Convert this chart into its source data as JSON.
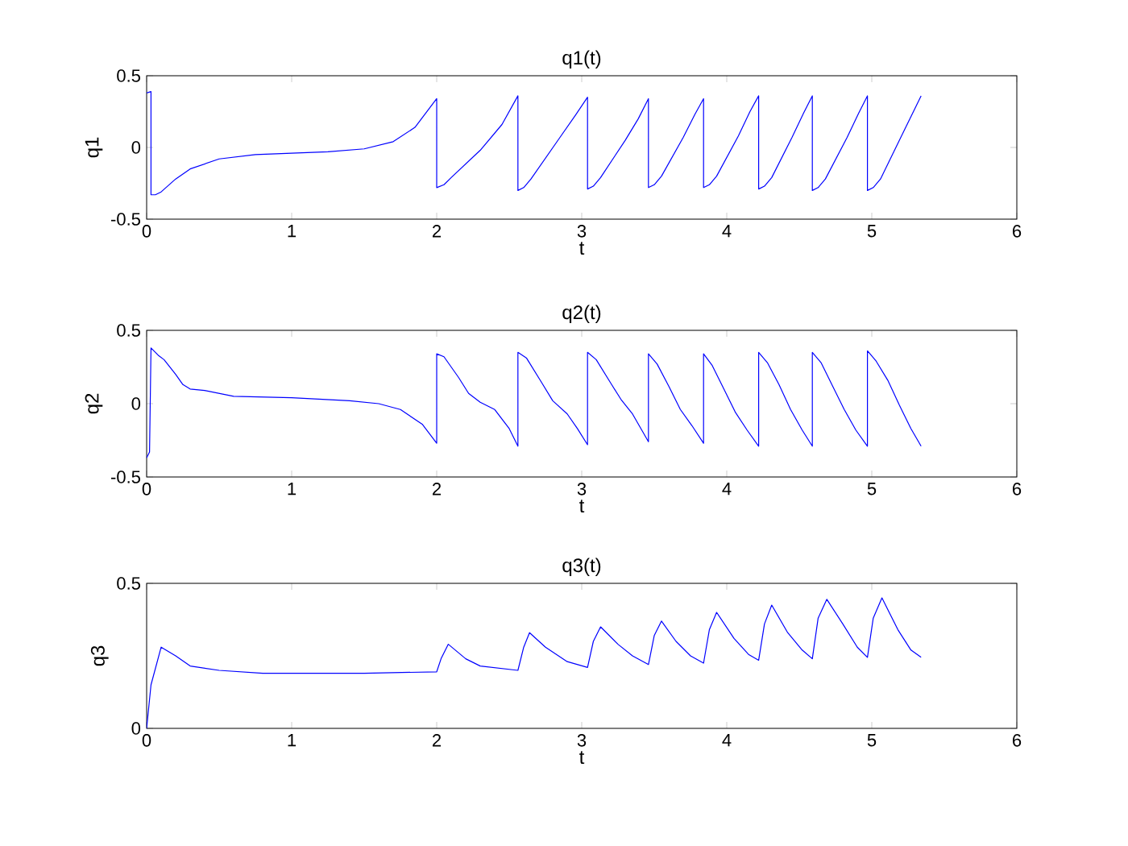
{
  "chart_data": [
    {
      "type": "line",
      "title": "q1(t)",
      "xlabel": "t",
      "ylabel": "q1",
      "color": "#0000ff",
      "xlim": [
        0,
        6
      ],
      "ylim": [
        -0.5,
        0.5
      ],
      "xticks": [
        0,
        1,
        2,
        3,
        4,
        5,
        6
      ],
      "yticks": [
        -0.5,
        0,
        0.5
      ],
      "x": [
        0,
        0.03,
        0.03,
        0.06,
        0.1,
        0.2,
        0.3,
        0.5,
        0.75,
        1,
        1.25,
        1.5,
        1.7,
        1.85,
        2.0,
        2.0,
        2.05,
        2.1,
        2.3,
        2.45,
        2.56,
        2.56,
        2.6,
        2.65,
        2.85,
        2.96,
        3.04,
        3.04,
        3.08,
        3.13,
        3.3,
        3.39,
        3.46,
        3.46,
        3.5,
        3.55,
        3.7,
        3.78,
        3.84,
        3.84,
        3.88,
        3.93,
        4.08,
        4.16,
        4.22,
        4.22,
        4.26,
        4.31,
        4.45,
        4.53,
        4.59,
        4.59,
        4.63,
        4.68,
        4.83,
        4.91,
        4.97,
        4.97,
        5.01,
        5.06,
        5.2,
        5.34
      ],
      "values": [
        0.38,
        0.39,
        -0.33,
        -0.33,
        -0.31,
        -0.22,
        -0.15,
        -0.08,
        -0.05,
        -0.04,
        -0.03,
        -0.01,
        0.04,
        0.14,
        0.34,
        -0.28,
        -0.26,
        -0.21,
        -0.02,
        0.16,
        0.36,
        -0.3,
        -0.28,
        -0.22,
        0.07,
        0.23,
        0.35,
        -0.29,
        -0.27,
        -0.21,
        0.05,
        0.2,
        0.34,
        -0.28,
        -0.26,
        -0.2,
        0.07,
        0.23,
        0.34,
        -0.28,
        -0.26,
        -0.2,
        0.08,
        0.25,
        0.36,
        -0.29,
        -0.27,
        -0.21,
        0.07,
        0.24,
        0.36,
        -0.3,
        -0.28,
        -0.22,
        0.07,
        0.24,
        0.36,
        -0.3,
        -0.28,
        -0.22,
        0.07,
        0.36
      ]
    },
    {
      "type": "line",
      "title": "q2(t)",
      "xlabel": "t",
      "ylabel": "q2",
      "color": "#0000ff",
      "xlim": [
        0,
        6
      ],
      "ylim": [
        -0.5,
        0.5
      ],
      "xticks": [
        0,
        1,
        2,
        3,
        4,
        5,
        6
      ],
      "yticks": [
        -0.5,
        0,
        0.5
      ],
      "x": [
        0,
        0.02,
        0.03,
        0.08,
        0.12,
        0.2,
        0.25,
        0.3,
        0.4,
        0.5,
        0.6,
        1,
        1.4,
        1.6,
        1.75,
        1.9,
        2.0,
        2.0,
        2.05,
        2.15,
        2.22,
        2.3,
        2.4,
        2.5,
        2.56,
        2.56,
        2.62,
        2.72,
        2.8,
        2.9,
        2.97,
        3.04,
        3.04,
        3.1,
        3.2,
        3.27,
        3.35,
        3.46,
        3.46,
        3.52,
        3.6,
        3.68,
        3.76,
        3.84,
        3.84,
        3.9,
        3.98,
        4.06,
        4.14,
        4.22,
        4.22,
        4.28,
        4.36,
        4.44,
        4.52,
        4.59,
        4.59,
        4.65,
        4.73,
        4.81,
        4.89,
        4.97,
        4.97,
        5.03,
        5.11,
        5.19,
        5.27,
        5.34
      ],
      "values": [
        -0.37,
        -0.33,
        0.38,
        0.33,
        0.3,
        0.2,
        0.13,
        0.1,
        0.09,
        0.07,
        0.05,
        0.04,
        0.02,
        0.0,
        -0.04,
        -0.14,
        -0.27,
        0.34,
        0.32,
        0.18,
        0.07,
        0.01,
        -0.04,
        -0.17,
        -0.29,
        0.35,
        0.31,
        0.15,
        0.02,
        -0.07,
        -0.17,
        -0.28,
        0.35,
        0.3,
        0.14,
        0.03,
        -0.07,
        -0.26,
        0.34,
        0.27,
        0.12,
        -0.04,
        -0.15,
        -0.27,
        0.34,
        0.26,
        0.1,
        -0.06,
        -0.18,
        -0.29,
        0.35,
        0.28,
        0.13,
        -0.04,
        -0.18,
        -0.29,
        0.35,
        0.28,
        0.12,
        -0.04,
        -0.18,
        -0.29,
        0.36,
        0.29,
        0.16,
        -0.01,
        -0.17,
        -0.29
      ]
    },
    {
      "type": "line",
      "title": "q3(t)",
      "xlabel": "t",
      "ylabel": "q3",
      "color": "#0000ff",
      "xlim": [
        0,
        6
      ],
      "ylim": [
        0,
        0.5
      ],
      "xticks": [
        0,
        1,
        2,
        3,
        4,
        5,
        6
      ],
      "yticks": [
        0,
        0.5
      ],
      "x": [
        0,
        0.03,
        0.1,
        0.2,
        0.3,
        0.5,
        0.8,
        1.5,
        2.0,
        2.03,
        2.08,
        2.2,
        2.3,
        2.56,
        2.6,
        2.64,
        2.75,
        2.9,
        3.04,
        3.08,
        3.13,
        3.25,
        3.35,
        3.46,
        3.5,
        3.55,
        3.65,
        3.75,
        3.84,
        3.88,
        3.93,
        4.05,
        4.15,
        4.22,
        4.26,
        4.31,
        4.42,
        4.52,
        4.59,
        4.63,
        4.69,
        4.8,
        4.9,
        4.97,
        5.01,
        5.07,
        5.18,
        5.27,
        5.34
      ],
      "values": [
        0,
        0.15,
        0.28,
        0.25,
        0.215,
        0.2,
        0.19,
        0.19,
        0.195,
        0.24,
        0.29,
        0.24,
        0.215,
        0.2,
        0.28,
        0.33,
        0.28,
        0.23,
        0.21,
        0.3,
        0.35,
        0.29,
        0.25,
        0.22,
        0.32,
        0.37,
        0.3,
        0.25,
        0.225,
        0.34,
        0.4,
        0.31,
        0.255,
        0.235,
        0.36,
        0.425,
        0.33,
        0.27,
        0.24,
        0.38,
        0.445,
        0.36,
        0.28,
        0.245,
        0.38,
        0.45,
        0.34,
        0.27,
        0.245
      ]
    }
  ]
}
